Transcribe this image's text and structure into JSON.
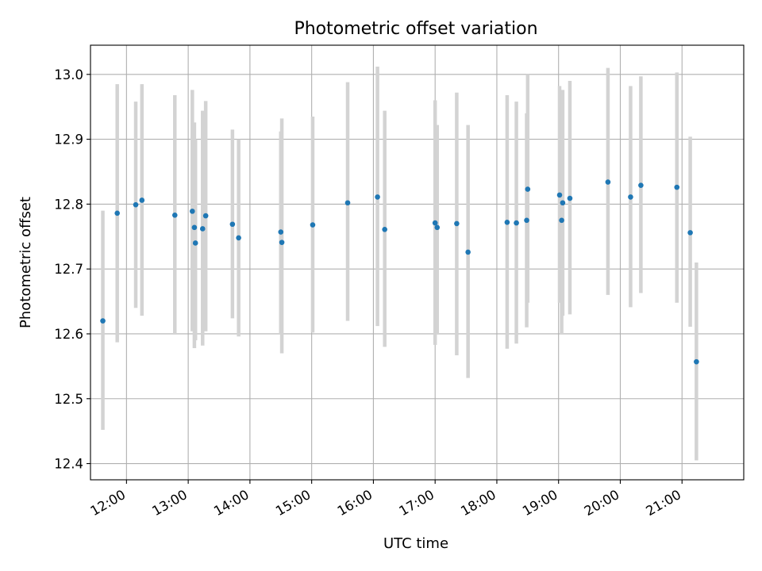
{
  "chart_data": {
    "type": "scatter",
    "title": "Photometric offset variation",
    "xlabel": "UTC time",
    "ylabel": "Photometric offset",
    "x_unit": "hours (UTC)",
    "xlim": [
      "11:25",
      "22:00"
    ],
    "ylim": [
      12.375,
      13.045
    ],
    "grid": true,
    "marker_color": "#1f77b4",
    "errorbar_color": "#d3d3d3",
    "x_ticks": [
      "12:00",
      "13:00",
      "14:00",
      "15:00",
      "16:00",
      "17:00",
      "18:00",
      "19:00",
      "20:00",
      "21:00"
    ],
    "y_ticks": [
      "12.4",
      "12.5",
      "12.6",
      "12.7",
      "12.8",
      "12.9",
      "13.0"
    ],
    "points": [
      {
        "x": "11:37",
        "y": 12.62,
        "ylow": 12.452,
        "yhigh": 12.79
      },
      {
        "x": "11:51",
        "y": 12.786,
        "ylow": 12.587,
        "yhigh": 12.985
      },
      {
        "x": "12:09",
        "y": 12.799,
        "ylow": 12.64,
        "yhigh": 12.958
      },
      {
        "x": "12:15",
        "y": 12.806,
        "ylow": 12.628,
        "yhigh": 12.985
      },
      {
        "x": "12:47",
        "y": 12.783,
        "ylow": 12.6,
        "yhigh": 12.968
      },
      {
        "x": "13:04",
        "y": 12.789,
        "ylow": 12.604,
        "yhigh": 12.976
      },
      {
        "x": "13:06",
        "y": 12.764,
        "ylow": 12.578,
        "yhigh": 12.926
      },
      {
        "x": "13:07",
        "y": 12.74,
        "ylow": 12.59,
        "yhigh": 12.9
      },
      {
        "x": "13:14",
        "y": 12.762,
        "ylow": 12.582,
        "yhigh": 12.944
      },
      {
        "x": "13:17",
        "y": 12.782,
        "ylow": 12.604,
        "yhigh": 12.959
      },
      {
        "x": "13:43",
        "y": 12.769,
        "ylow": 12.624,
        "yhigh": 12.915
      },
      {
        "x": "13:49",
        "y": 12.748,
        "ylow": 12.596,
        "yhigh": 12.9
      },
      {
        "x": "14:30",
        "y": 12.757,
        "ylow": 12.6,
        "yhigh": 12.912
      },
      {
        "x": "14:31",
        "y": 12.741,
        "ylow": 12.57,
        "yhigh": 12.932
      },
      {
        "x": "15:01",
        "y": 12.768,
        "ylow": 12.602,
        "yhigh": 12.935
      },
      {
        "x": "15:35",
        "y": 12.802,
        "ylow": 12.62,
        "yhigh": 12.988
      },
      {
        "x": "16:04",
        "y": 12.811,
        "ylow": 12.612,
        "yhigh": 13.012
      },
      {
        "x": "16:11",
        "y": 12.761,
        "ylow": 12.58,
        "yhigh": 12.944
      },
      {
        "x": "17:00",
        "y": 12.771,
        "ylow": 12.583,
        "yhigh": 12.96
      },
      {
        "x": "17:02",
        "y": 12.764,
        "ylow": 12.6,
        "yhigh": 12.922
      },
      {
        "x": "17:21",
        "y": 12.77,
        "ylow": 12.567,
        "yhigh": 12.972
      },
      {
        "x": "17:32",
        "y": 12.726,
        "ylow": 12.532,
        "yhigh": 12.922
      },
      {
        "x": "18:10",
        "y": 12.772,
        "ylow": 12.577,
        "yhigh": 12.968
      },
      {
        "x": "18:19",
        "y": 12.771,
        "ylow": 12.585,
        "yhigh": 12.958
      },
      {
        "x": "18:29",
        "y": 12.775,
        "ylow": 12.61,
        "yhigh": 12.94
      },
      {
        "x": "18:30",
        "y": 12.823,
        "ylow": 12.648,
        "yhigh": 13.0
      },
      {
        "x": "19:01",
        "y": 12.814,
        "ylow": 12.648,
        "yhigh": 12.982
      },
      {
        "x": "19:03",
        "y": 12.775,
        "ylow": 12.6,
        "yhigh": 12.95
      },
      {
        "x": "19:04",
        "y": 12.802,
        "ylow": 12.628,
        "yhigh": 12.976
      },
      {
        "x": "19:11",
        "y": 12.809,
        "ylow": 12.63,
        "yhigh": 12.99
      },
      {
        "x": "19:48",
        "y": 12.834,
        "ylow": 12.66,
        "yhigh": 13.01
      },
      {
        "x": "20:10",
        "y": 12.811,
        "ylow": 12.641,
        "yhigh": 12.982
      },
      {
        "x": "20:20",
        "y": 12.829,
        "ylow": 12.663,
        "yhigh": 12.997
      },
      {
        "x": "20:55",
        "y": 12.826,
        "ylow": 12.648,
        "yhigh": 13.003
      },
      {
        "x": "21:08",
        "y": 12.756,
        "ylow": 12.611,
        "yhigh": 12.904
      },
      {
        "x": "21:14",
        "y": 12.557,
        "ylow": 12.405,
        "yhigh": 12.71
      }
    ]
  }
}
